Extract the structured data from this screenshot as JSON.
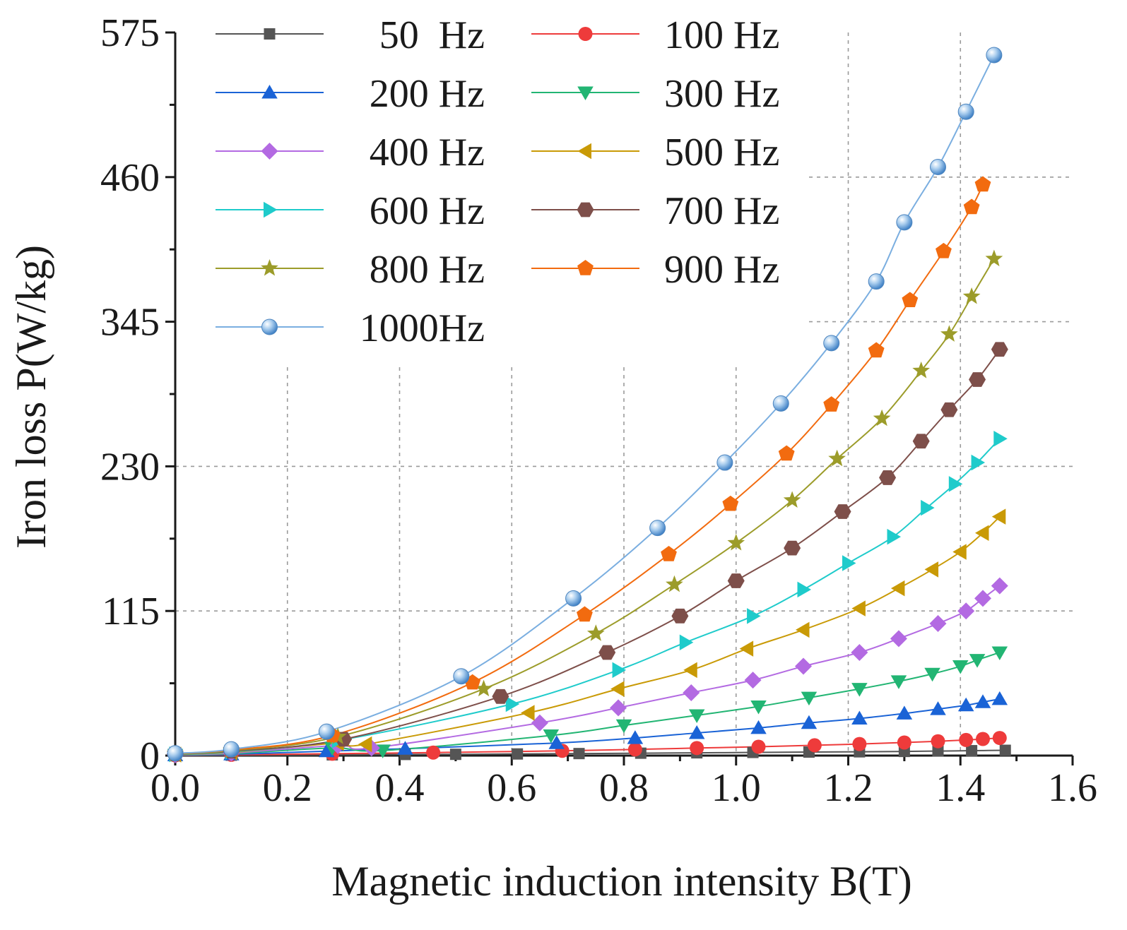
{
  "chart_data": {
    "type": "line",
    "title": "",
    "xlabel": "Magnetic induction intensity B(T)",
    "ylabel": "Iron loss P(W/kg)",
    "xlim": [
      0.0,
      1.6
    ],
    "ylim": [
      0,
      575
    ],
    "xticks": [
      0.0,
      0.2,
      0.4,
      0.6,
      0.8,
      1.0,
      1.2,
      1.4,
      1.6
    ],
    "xtick_labels": [
      "0.0",
      "0.2",
      "0.4",
      "0.6",
      "0.8",
      "1.0",
      "1.2",
      "1.4",
      "1.6"
    ],
    "yticks": [
      0,
      115,
      230,
      345,
      460,
      575
    ],
    "ytick_labels": [
      "0",
      "115",
      "230",
      "345",
      "460",
      "575"
    ],
    "grid": true,
    "legend_position": "top-left",
    "series": [
      {
        "name": "50  Hz",
        "color": "#555555",
        "marker": "square",
        "x": [
          0.0,
          0.1,
          0.28,
          0.41,
          0.5,
          0.61,
          0.72,
          0.83,
          0.93,
          1.03,
          1.13,
          1.22,
          1.3,
          1.36,
          1.42,
          1.48
        ],
        "y": [
          0.1,
          0.3,
          0.6,
          0.9,
          1.0,
          1.3,
          1.6,
          1.9,
          2.2,
          2.5,
          2.8,
          3.0,
          3.3,
          3.6,
          3.9,
          4.2
        ]
      },
      {
        "name": "100 Hz",
        "color": "#ee3b3b",
        "marker": "circle",
        "x": [
          0.0,
          0.1,
          0.28,
          0.46,
          0.69,
          0.82,
          0.93,
          1.04,
          1.14,
          1.22,
          1.3,
          1.36,
          1.41,
          1.44,
          1.47
        ],
        "y": [
          0.2,
          0.6,
          1.5,
          2.4,
          3.8,
          4.9,
          6.0,
          7.0,
          8.2,
          9.2,
          10.4,
          11.4,
          12.4,
          13.2,
          14.0
        ]
      },
      {
        "name": "200 Hz",
        "color": "#1a63d6",
        "marker": "triangle-up",
        "x": [
          0.0,
          0.1,
          0.27,
          0.41,
          0.68,
          0.82,
          0.93,
          1.04,
          1.13,
          1.22,
          1.3,
          1.36,
          1.41,
          1.44,
          1.47
        ],
        "y": [
          0.3,
          1.0,
          3.5,
          5.5,
          10.0,
          14.0,
          18.0,
          22.0,
          26.0,
          29.5,
          33.5,
          37.0,
          40.0,
          42.5,
          45.0
        ]
      },
      {
        "name": "300 Hz",
        "color": "#22b573",
        "marker": "triangle-down",
        "x": [
          0.0,
          0.1,
          0.28,
          0.37,
          0.67,
          0.8,
          0.93,
          1.04,
          1.13,
          1.22,
          1.29,
          1.35,
          1.4,
          1.43,
          1.47
        ],
        "y": [
          0.5,
          1.5,
          6.0,
          4.0,
          16.0,
          24.0,
          32.0,
          39.0,
          46.0,
          53.0,
          59.0,
          65.0,
          71.0,
          76.0,
          82.0
        ]
      },
      {
        "name": "400 Hz",
        "color": "#b36ae2",
        "marker": "diamond",
        "x": [
          0.0,
          0.1,
          0.29,
          0.35,
          0.65,
          0.79,
          0.92,
          1.03,
          1.12,
          1.22,
          1.29,
          1.36,
          1.41,
          1.44,
          1.47
        ],
        "y": [
          0.6,
          2.0,
          8.0,
          6.0,
          26.0,
          38.0,
          50.0,
          60.0,
          71.0,
          82.0,
          93.0,
          105.0,
          115.0,
          125.0,
          135.0
        ]
      },
      {
        "name": "500 Hz",
        "color": "#c99a06",
        "marker": "triangle-left",
        "x": [
          0.0,
          0.1,
          0.29,
          0.34,
          0.63,
          0.79,
          0.92,
          1.02,
          1.12,
          1.22,
          1.29,
          1.35,
          1.4,
          1.44,
          1.47
        ],
        "y": [
          0.8,
          2.5,
          10.0,
          9.0,
          34.0,
          53.0,
          68.0,
          85.0,
          100.0,
          117.0,
          133.0,
          148.0,
          162.0,
          177.0,
          190.0
        ]
      },
      {
        "name": "600 Hz",
        "color": "#1fcbcb",
        "marker": "triangle-right",
        "x": [
          0.0,
          0.1,
          0.29,
          0.6,
          0.79,
          0.91,
          1.03,
          1.12,
          1.2,
          1.28,
          1.34,
          1.39,
          1.43,
          1.47
        ],
        "y": [
          1.0,
          3.0,
          12.0,
          41.0,
          68.0,
          90.0,
          111.0,
          132.0,
          153.0,
          174.0,
          197.0,
          216.0,
          233.0,
          252.0
        ]
      },
      {
        "name": "700 Hz",
        "color": "#7e4f4a",
        "marker": "hexagon",
        "x": [
          0.0,
          0.1,
          0.3,
          0.58,
          0.77,
          0.9,
          1.0,
          1.1,
          1.19,
          1.27,
          1.33,
          1.38,
          1.43,
          1.47
        ],
        "y": [
          1.2,
          3.5,
          13.0,
          47.0,
          82.0,
          111.0,
          139.0,
          165.0,
          194.0,
          221.0,
          250.0,
          275.0,
          299.0,
          323.0
        ]
      },
      {
        "name": "800 Hz",
        "color": "#9c9c2a",
        "marker": "star",
        "x": [
          0.0,
          0.1,
          0.29,
          0.55,
          0.75,
          0.89,
          1.0,
          1.1,
          1.18,
          1.26,
          1.33,
          1.38,
          1.42,
          1.46
        ],
        "y": [
          1.4,
          4.0,
          15.0,
          53.0,
          97.0,
          136.0,
          169.0,
          203.0,
          236.0,
          268.0,
          306.0,
          335.0,
          365.0,
          395.0
        ]
      },
      {
        "name": "900 Hz",
        "color": "#f26b0f",
        "marker": "pentagon",
        "x": [
          0.0,
          0.1,
          0.28,
          0.53,
          0.73,
          0.88,
          0.99,
          1.09,
          1.17,
          1.25,
          1.31,
          1.37,
          1.42,
          1.44
        ],
        "y": [
          1.6,
          4.5,
          16.0,
          58.0,
          112.0,
          160.0,
          200.0,
          240.0,
          279.0,
          322.0,
          362.0,
          401.0,
          436.0,
          454.0
        ]
      },
      {
        "name": "1000Hz",
        "color": "#7aaee0",
        "marker": "sphere",
        "x": [
          0.0,
          0.1,
          0.27,
          0.51,
          0.71,
          0.86,
          0.98,
          1.08,
          1.17,
          1.25,
          1.3,
          1.36,
          1.41,
          1.46
        ],
        "y": [
          1.8,
          5.0,
          19.0,
          63.0,
          125.0,
          181.0,
          233.0,
          280.0,
          328.0,
          377.0,
          424.0,
          468.0,
          512.0,
          557.0
        ]
      }
    ]
  }
}
